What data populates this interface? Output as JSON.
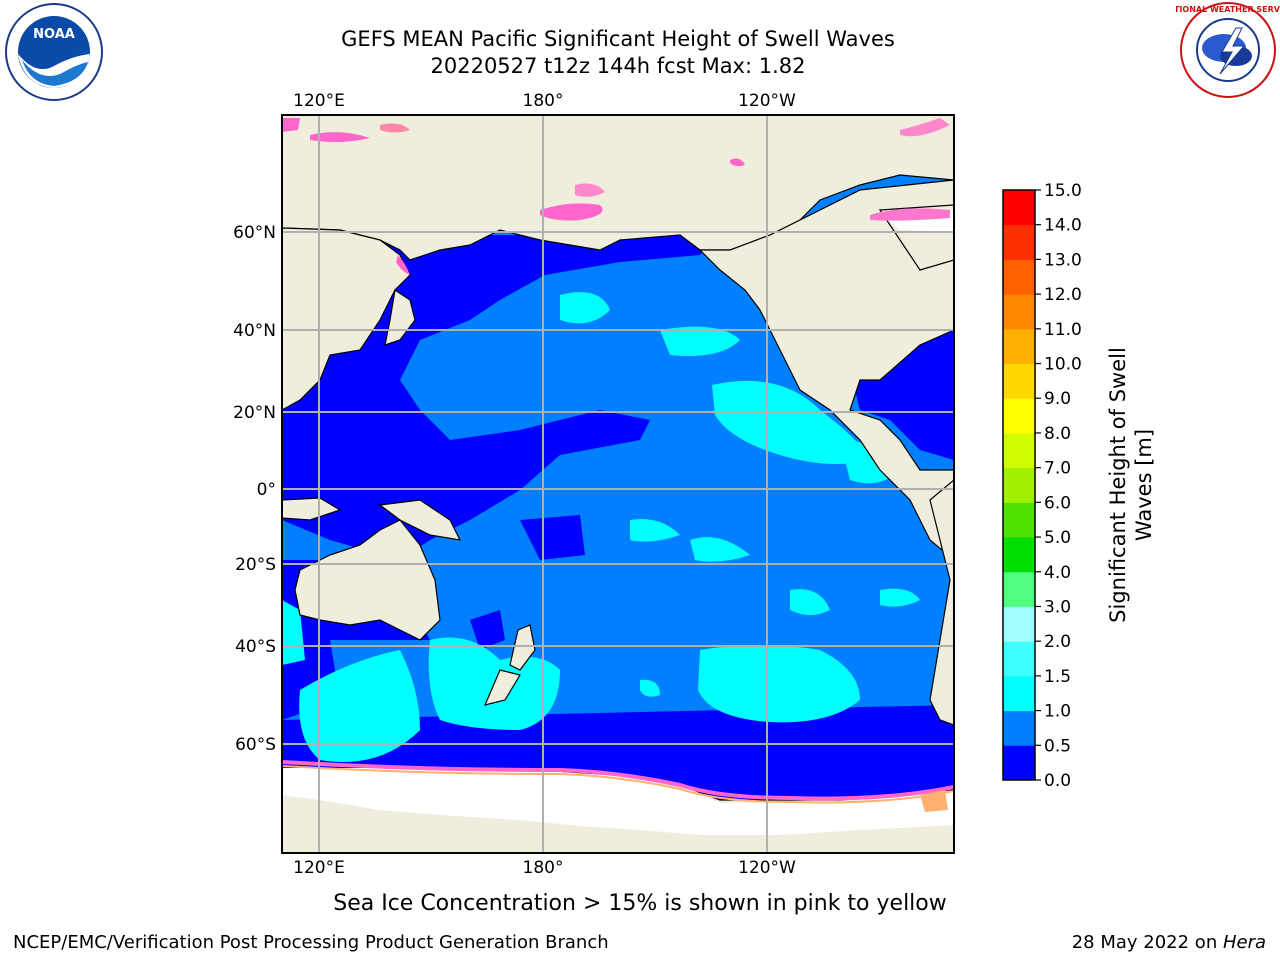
{
  "header": {
    "title_line1": "GEFS MEAN Pacific Significant Height of Swell Waves",
    "title_line2": "20220527 t12z 144h fcst   Max: 1.82"
  },
  "logos": {
    "left_logo_text": "NOAA",
    "right_logo_text": "NATIONAL WEATHER SERVICE"
  },
  "map": {
    "lon_ticks": [
      "120°E",
      "180°",
      "120°W"
    ],
    "lat_ticks": [
      "60°N",
      "40°N",
      "20°N",
      "0°",
      "20°S",
      "40°S",
      "60°S"
    ]
  },
  "colorbar": {
    "label_line1": "Significant Height of Swell",
    "label_line2": "Waves [m]",
    "ticks": [
      "0.0",
      "0.5",
      "1.0",
      "1.5",
      "2.0",
      "3.0",
      "4.0",
      "5.0",
      "6.0",
      "7.0",
      "8.0",
      "9.0",
      "10.0",
      "11.0",
      "12.0",
      "13.0",
      "14.0",
      "15.0"
    ],
    "colors": [
      "#0000ff",
      "#0080ff",
      "#00ffff",
      "#40ffff",
      "#a0ffff",
      "#50ff80",
      "#00e000",
      "#50e000",
      "#a0f000",
      "#d0ff00",
      "#ffff00",
      "#ffd800",
      "#ffb000",
      "#ff8800",
      "#ff6000",
      "#ff3000",
      "#ff0000"
    ]
  },
  "caption": "Sea Ice Concentration > 15% is shown in pink to yellow",
  "footer": {
    "left": "NCEP/EMC/Verification Post Processing Product Generation Branch",
    "date": "28 May 2022 on ",
    "machine": "Hera"
  }
}
